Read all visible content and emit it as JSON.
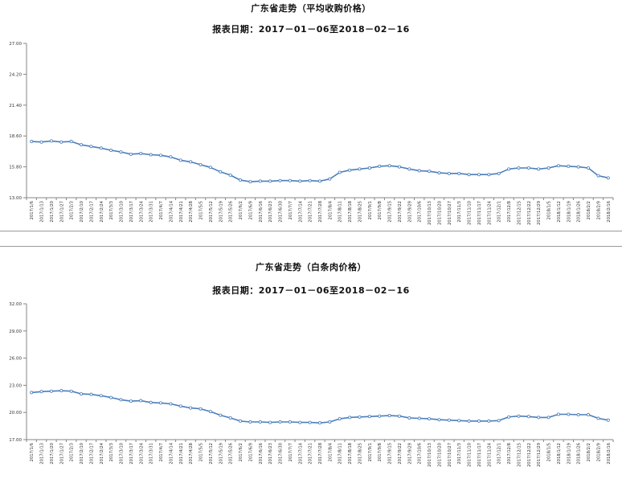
{
  "chart_data": [
    {
      "type": "line",
      "title": "广东省走势（平均收购价格）",
      "subtitle": "报表日期：2017－01－06至2018－02－16",
      "ylim": [
        13.0,
        27.0
      ],
      "yticks": [
        "13.00",
        "15.80",
        "18.60",
        "21.40",
        "24.20",
        "27.00"
      ],
      "grid": false,
      "line_color": "#4a7ebb",
      "categories": [
        "2017/1/6",
        "2017/1/13",
        "2017/1/20",
        "2017/1/27",
        "2017/2/3",
        "2017/2/10",
        "2017/2/17",
        "2017/2/24",
        "2017/3/3",
        "2017/3/10",
        "2017/3/17",
        "2017/3/24",
        "2017/3/31",
        "2017/4/7",
        "2017/4/14",
        "2017/4/21",
        "2017/4/28",
        "2017/5/5",
        "2017/5/12",
        "2017/5/19",
        "2017/5/26",
        "2017/6/2",
        "2017/6/9",
        "2017/6/16",
        "2017/6/23",
        "2017/6/30",
        "2017/7/7",
        "2017/7/14",
        "2017/7/21",
        "2017/7/28",
        "2017/8/4",
        "2017/8/11",
        "2017/8/18",
        "2017/8/25",
        "2017/9/1",
        "2017/9/8",
        "2017/9/15",
        "2017/9/22",
        "2017/9/29",
        "2017/10/6",
        "2017/10/13",
        "2017/10/20",
        "2017/10/27",
        "2017/11/3",
        "2017/11/10",
        "2017/11/17",
        "2017/11/24",
        "2017/12/1",
        "2017/12/8",
        "2017/12/15",
        "2017/12/22",
        "2017/12/29",
        "2018/1/5",
        "2018/1/12",
        "2018/1/19",
        "2018/1/26",
        "2018/2/2",
        "2018/2/9",
        "2018/2/16"
      ],
      "series": [
        {
          "values": [
            18.1,
            18.05,
            18.15,
            18.05,
            18.1,
            17.8,
            17.65,
            17.5,
            17.3,
            17.15,
            16.95,
            17.0,
            16.9,
            16.85,
            16.7,
            16.4,
            16.25,
            16.0,
            15.75,
            15.35,
            15.05,
            14.6,
            14.45,
            14.5,
            14.5,
            14.55,
            14.55,
            14.5,
            14.55,
            14.5,
            14.7,
            15.3,
            15.5,
            15.6,
            15.7,
            15.85,
            15.9,
            15.8,
            15.6,
            15.45,
            15.4,
            15.25,
            15.2,
            15.2,
            15.1,
            15.1,
            15.1,
            15.2,
            15.6,
            15.7,
            15.7,
            15.6,
            15.7,
            15.9,
            15.85,
            15.8,
            15.7,
            15.0,
            14.8
          ]
        }
      ]
    },
    {
      "type": "line",
      "title": "广东省走势（白条肉价格）",
      "subtitle": "报表日期：2017－01－06至2018－02－16",
      "ylim": [
        17.0,
        32.0
      ],
      "yticks": [
        "17.00",
        "20.00",
        "23.00",
        "26.00",
        "29.00",
        "32.00"
      ],
      "grid": false,
      "line_color": "#4a7ebb",
      "categories": [
        "2017/1/6",
        "2017/1/13",
        "2017/1/20",
        "2017/1/27",
        "2017/2/3",
        "2017/2/10",
        "2017/2/17",
        "2017/2/24",
        "2017/3/3",
        "2017/3/10",
        "2017/3/17",
        "2017/3/24",
        "2017/3/31",
        "2017/4/7",
        "2017/4/14",
        "2017/4/21",
        "2017/4/28",
        "2017/5/5",
        "2017/5/12",
        "2017/5/19",
        "2017/5/26",
        "2017/6/2",
        "2017/6/9",
        "2017/6/16",
        "2017/6/23",
        "2017/6/30",
        "2017/7/7",
        "2017/7/14",
        "2017/7/21",
        "2017/7/28",
        "2017/8/4",
        "2017/8/11",
        "2017/8/18",
        "2017/8/25",
        "2017/9/1",
        "2017/9/8",
        "2017/9/15",
        "2017/9/22",
        "2017/9/29",
        "2017/10/6",
        "2017/10/13",
        "2017/10/20",
        "2017/10/27",
        "2017/11/3",
        "2017/11/10",
        "2017/11/17",
        "2017/11/24",
        "2017/12/1",
        "2017/12/8",
        "2017/12/15",
        "2017/12/22",
        "2017/12/29",
        "2018/1/5",
        "2018/1/12",
        "2018/1/19",
        "2018/1/26",
        "2018/2/2",
        "2018/2/9",
        "2018/2/16"
      ],
      "series": [
        {
          "values": [
            22.2,
            22.3,
            22.35,
            22.4,
            22.35,
            22.05,
            22.0,
            21.85,
            21.65,
            21.4,
            21.25,
            21.3,
            21.1,
            21.05,
            20.95,
            20.7,
            20.5,
            20.4,
            20.1,
            19.7,
            19.4,
            19.05,
            18.95,
            18.95,
            18.9,
            18.95,
            18.95,
            18.9,
            18.9,
            18.85,
            18.95,
            19.3,
            19.45,
            19.5,
            19.55,
            19.6,
            19.65,
            19.6,
            19.4,
            19.35,
            19.3,
            19.2,
            19.15,
            19.1,
            19.05,
            19.05,
            19.05,
            19.1,
            19.5,
            19.6,
            19.55,
            19.45,
            19.45,
            19.8,
            19.8,
            19.75,
            19.75,
            19.35,
            19.15
          ]
        }
      ]
    }
  ]
}
